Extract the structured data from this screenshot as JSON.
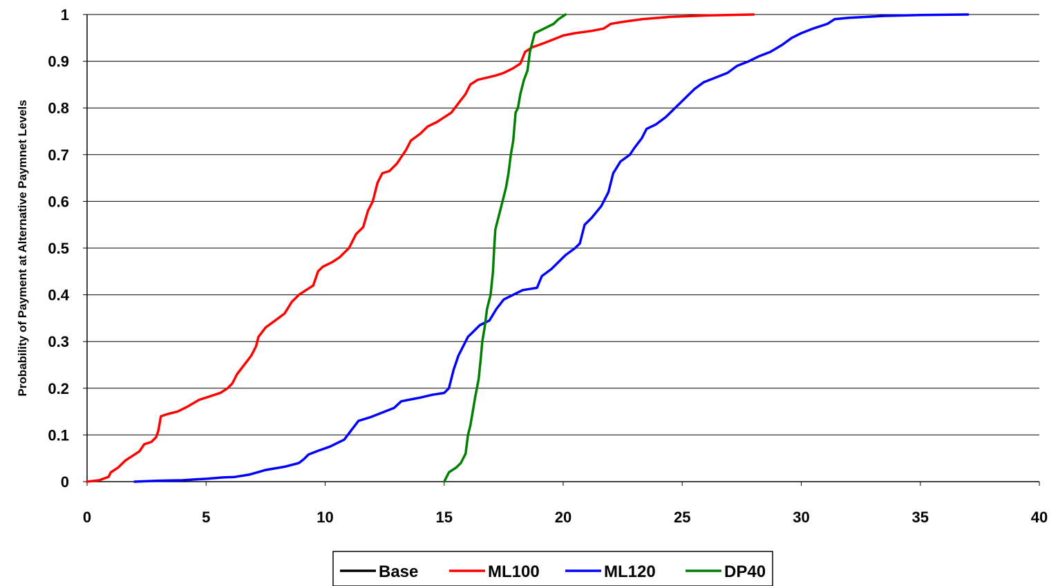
{
  "chart_data": {
    "type": "line",
    "title": "",
    "xlabel": "",
    "ylabel": "Probability of Payment at Alternative Paymnet Levels",
    "xlim": [
      0,
      40
    ],
    "ylim": [
      0,
      1
    ],
    "x_ticks": [
      "0",
      "5",
      "10",
      "15",
      "20",
      "25",
      "30",
      "35",
      "40"
    ],
    "y_ticks": [
      "0",
      "0.1",
      "0.2",
      "0.3",
      "0.4",
      "0.5",
      "0.6",
      "0.7",
      "0.8",
      "0.9",
      "1"
    ],
    "grid": "horizontal",
    "legend_position": "bottom",
    "series": [
      {
        "name": "Base",
        "color": "#000000",
        "points": []
      },
      {
        "name": "ML100",
        "color": "#ff0000",
        "points": [
          [
            0,
            0
          ],
          [
            0.5,
            0.003
          ],
          [
            0.9,
            0.01
          ],
          [
            1.0,
            0.02
          ],
          [
            1.3,
            0.03
          ],
          [
            1.6,
            0.045
          ],
          [
            1.9,
            0.055
          ],
          [
            2.2,
            0.065
          ],
          [
            2.4,
            0.08
          ],
          [
            2.7,
            0.085
          ],
          [
            2.9,
            0.095
          ],
          [
            3.0,
            0.11
          ],
          [
            3.1,
            0.14
          ],
          [
            3.4,
            0.145
          ],
          [
            3.8,
            0.15
          ],
          [
            4.2,
            0.16
          ],
          [
            4.7,
            0.175
          ],
          [
            5.0,
            0.18
          ],
          [
            5.6,
            0.19
          ],
          [
            5.9,
            0.2
          ],
          [
            6.1,
            0.21
          ],
          [
            6.3,
            0.23
          ],
          [
            6.6,
            0.25
          ],
          [
            6.9,
            0.27
          ],
          [
            7.1,
            0.29
          ],
          [
            7.2,
            0.31
          ],
          [
            7.5,
            0.33
          ],
          [
            7.9,
            0.345
          ],
          [
            8.3,
            0.36
          ],
          [
            8.6,
            0.385
          ],
          [
            8.9,
            0.4
          ],
          [
            9.2,
            0.41
          ],
          [
            9.5,
            0.42
          ],
          [
            9.7,
            0.45
          ],
          [
            9.9,
            0.46
          ],
          [
            10.3,
            0.47
          ],
          [
            10.6,
            0.48
          ],
          [
            11.0,
            0.5
          ],
          [
            11.3,
            0.53
          ],
          [
            11.6,
            0.545
          ],
          [
            11.8,
            0.58
          ],
          [
            12.0,
            0.6
          ],
          [
            12.2,
            0.64
          ],
          [
            12.4,
            0.66
          ],
          [
            12.7,
            0.665
          ],
          [
            13.0,
            0.68
          ],
          [
            13.2,
            0.695
          ],
          [
            13.4,
            0.71
          ],
          [
            13.6,
            0.73
          ],
          [
            14.0,
            0.745
          ],
          [
            14.3,
            0.76
          ],
          [
            14.7,
            0.77
          ],
          [
            15.0,
            0.78
          ],
          [
            15.3,
            0.79
          ],
          [
            15.6,
            0.81
          ],
          [
            15.9,
            0.83
          ],
          [
            16.1,
            0.85
          ],
          [
            16.4,
            0.86
          ],
          [
            16.8,
            0.865
          ],
          [
            17.2,
            0.87
          ],
          [
            17.5,
            0.875
          ],
          [
            17.9,
            0.885
          ],
          [
            18.2,
            0.895
          ],
          [
            18.4,
            0.92
          ],
          [
            18.7,
            0.93
          ],
          [
            19.0,
            0.935
          ],
          [
            19.5,
            0.945
          ],
          [
            20.0,
            0.955
          ],
          [
            20.5,
            0.96
          ],
          [
            21.2,
            0.965
          ],
          [
            21.7,
            0.97
          ],
          [
            22.0,
            0.98
          ],
          [
            22.6,
            0.985
          ],
          [
            23.3,
            0.99
          ],
          [
            24.5,
            0.995
          ],
          [
            26.0,
            0.998
          ],
          [
            28.0,
            1.0
          ]
        ]
      },
      {
        "name": "ML120",
        "color": "#0000ff",
        "points": [
          [
            2.0,
            0
          ],
          [
            3.0,
            0.002
          ],
          [
            4.0,
            0.003
          ],
          [
            4.6,
            0.005
          ],
          [
            5.0,
            0.006
          ],
          [
            5.7,
            0.009
          ],
          [
            6.2,
            0.01
          ],
          [
            6.8,
            0.015
          ],
          [
            7.5,
            0.025
          ],
          [
            8.3,
            0.032
          ],
          [
            8.9,
            0.04
          ],
          [
            9.1,
            0.048
          ],
          [
            9.3,
            0.058
          ],
          [
            9.7,
            0.066
          ],
          [
            10.2,
            0.075
          ],
          [
            10.8,
            0.09
          ],
          [
            11.1,
            0.11
          ],
          [
            11.4,
            0.13
          ],
          [
            11.9,
            0.138
          ],
          [
            12.4,
            0.148
          ],
          [
            12.9,
            0.158
          ],
          [
            13.2,
            0.172
          ],
          [
            13.6,
            0.176
          ],
          [
            14.0,
            0.18
          ],
          [
            14.5,
            0.186
          ],
          [
            15.0,
            0.19
          ],
          [
            15.2,
            0.2
          ],
          [
            15.4,
            0.24
          ],
          [
            15.6,
            0.27
          ],
          [
            15.8,
            0.29
          ],
          [
            16.0,
            0.31
          ],
          [
            16.2,
            0.32
          ],
          [
            16.5,
            0.335
          ],
          [
            16.9,
            0.345
          ],
          [
            17.2,
            0.37
          ],
          [
            17.5,
            0.39
          ],
          [
            17.9,
            0.4
          ],
          [
            18.3,
            0.41
          ],
          [
            18.9,
            0.415
          ],
          [
            19.1,
            0.44
          ],
          [
            19.5,
            0.455
          ],
          [
            19.8,
            0.47
          ],
          [
            20.1,
            0.485
          ],
          [
            20.5,
            0.5
          ],
          [
            20.7,
            0.51
          ],
          [
            20.9,
            0.55
          ],
          [
            21.2,
            0.565
          ],
          [
            21.6,
            0.59
          ],
          [
            21.9,
            0.62
          ],
          [
            22.1,
            0.66
          ],
          [
            22.4,
            0.685
          ],
          [
            22.8,
            0.7
          ],
          [
            23.0,
            0.715
          ],
          [
            23.3,
            0.735
          ],
          [
            23.5,
            0.755
          ],
          [
            23.9,
            0.765
          ],
          [
            24.3,
            0.78
          ],
          [
            24.7,
            0.8
          ],
          [
            25.0,
            0.815
          ],
          [
            25.5,
            0.84
          ],
          [
            25.9,
            0.855
          ],
          [
            26.4,
            0.865
          ],
          [
            26.9,
            0.875
          ],
          [
            27.3,
            0.89
          ],
          [
            27.8,
            0.9
          ],
          [
            28.2,
            0.91
          ],
          [
            28.7,
            0.92
          ],
          [
            29.2,
            0.935
          ],
          [
            29.6,
            0.95
          ],
          [
            30.0,
            0.96
          ],
          [
            30.5,
            0.97
          ],
          [
            31.1,
            0.98
          ],
          [
            31.4,
            0.99
          ],
          [
            32.0,
            0.993
          ],
          [
            33.5,
            0.997
          ],
          [
            35.0,
            0.999
          ],
          [
            37.0,
            1.0
          ]
        ]
      },
      {
        "name": "DP40",
        "color": "#008000",
        "points": [
          [
            15.0,
            0
          ],
          [
            15.2,
            0.02
          ],
          [
            15.5,
            0.03
          ],
          [
            15.7,
            0.04
          ],
          [
            15.9,
            0.06
          ],
          [
            16.0,
            0.1
          ],
          [
            16.1,
            0.12
          ],
          [
            16.2,
            0.15
          ],
          [
            16.3,
            0.18
          ],
          [
            16.45,
            0.22
          ],
          [
            16.55,
            0.27
          ],
          [
            16.6,
            0.3
          ],
          [
            16.7,
            0.33
          ],
          [
            16.8,
            0.37
          ],
          [
            16.95,
            0.4
          ],
          [
            17.05,
            0.45
          ],
          [
            17.1,
            0.5
          ],
          [
            17.15,
            0.54
          ],
          [
            17.3,
            0.57
          ],
          [
            17.45,
            0.6
          ],
          [
            17.6,
            0.63
          ],
          [
            17.7,
            0.66
          ],
          [
            17.8,
            0.7
          ],
          [
            17.9,
            0.73
          ],
          [
            17.95,
            0.76
          ],
          [
            18.0,
            0.79
          ],
          [
            18.1,
            0.8
          ],
          [
            18.2,
            0.83
          ],
          [
            18.35,
            0.86
          ],
          [
            18.5,
            0.88
          ],
          [
            18.6,
            0.92
          ],
          [
            18.8,
            0.96
          ],
          [
            19.2,
            0.97
          ],
          [
            19.6,
            0.98
          ],
          [
            19.8,
            0.99
          ],
          [
            20.1,
            1.0
          ]
        ]
      }
    ]
  }
}
